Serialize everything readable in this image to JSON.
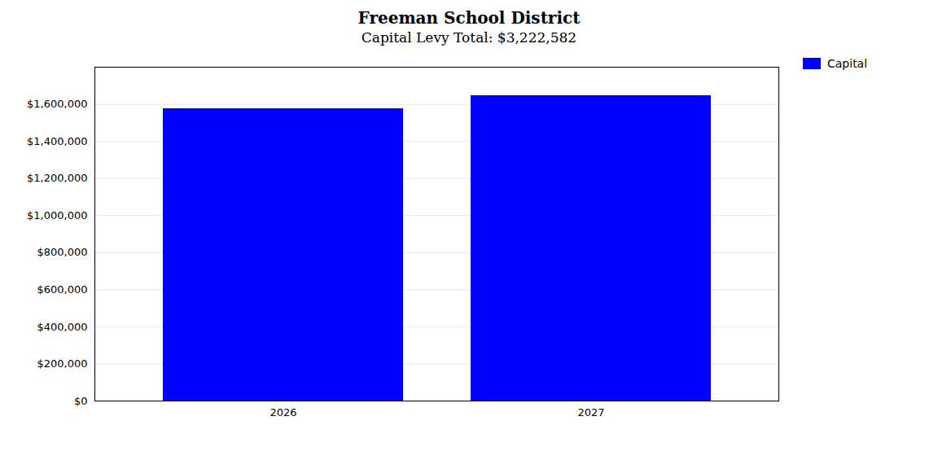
{
  "chart_data": {
    "type": "bar",
    "title": "Freeman School District",
    "subtitle": "Capital Levy Total: $3,222,582",
    "categories": [
      "2026",
      "2027"
    ],
    "series": [
      {
        "name": "Capital",
        "color": "#0000FF",
        "values": [
          1576000,
          1646582
        ]
      }
    ],
    "ylim": [
      0,
      1800000
    ],
    "yticks": [
      {
        "value": 0,
        "label": "$0"
      },
      {
        "value": 200000,
        "label": "$200,000"
      },
      {
        "value": 400000,
        "label": "$400,000"
      },
      {
        "value": 600000,
        "label": "$600,000"
      },
      {
        "value": 800000,
        "label": "$800,000"
      },
      {
        "value": 1000000,
        "label": "$1,000,000"
      },
      {
        "value": 1200000,
        "label": "$1,200,000"
      },
      {
        "value": 1400000,
        "label": "$1,400,000"
      },
      {
        "value": 1600000,
        "label": "$1,600,000"
      }
    ],
    "grid": true,
    "legend": "upper right"
  }
}
